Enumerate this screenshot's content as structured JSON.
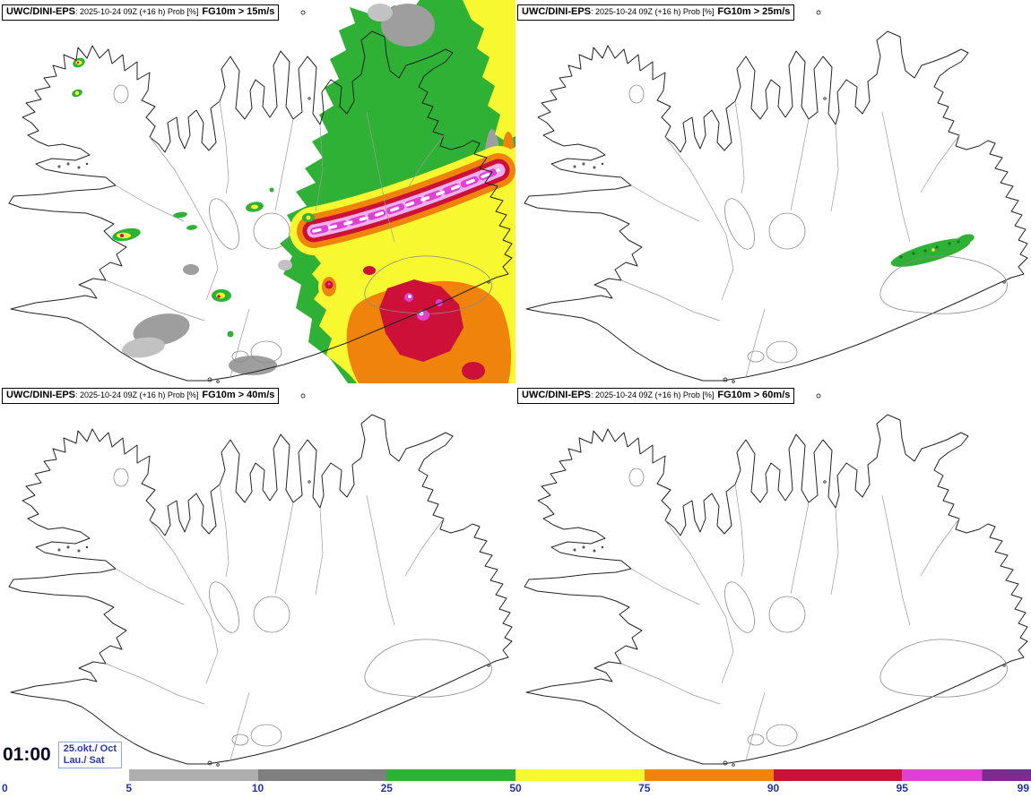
{
  "app": {
    "type": "ensemble probability forecast maps",
    "region": "Iceland"
  },
  "panels": [
    {
      "model": "UWC/DINI-EPS",
      "info": ": 2025-10-24 09Z (+16 h) Prob [%]",
      "threshold": "FG10m > 15m/s"
    },
    {
      "model": "UWC/DINI-EPS",
      "info": ": 2025-10-24 09Z (+16 h) Prob [%]",
      "threshold": "FG10m > 25m/s"
    },
    {
      "model": "UWC/DINI-EPS",
      "info": ": 2025-10-24 09Z (+16 h) Prob [%]",
      "threshold": "FG10m > 40m/s"
    },
    {
      "model": "UWC/DINI-EPS",
      "info": ": 2025-10-24 09Z (+16 h) Prob [%]",
      "threshold": "FG10m > 60m/s"
    }
  ],
  "footer": {
    "time": "01:00",
    "date_line1": "25.okt./ Oct",
    "date_line2": "Lau./ Sat"
  },
  "colorbar": {
    "ticks": [
      "0",
      "5",
      "10",
      "25",
      "50",
      "75",
      "90",
      "95",
      "99"
    ],
    "segments": [
      {
        "label": "0-5",
        "color": "#ffffff"
      },
      {
        "label": "5-10",
        "color": "#aeaeae"
      },
      {
        "label": "10-25",
        "color": "#7f7f7f"
      },
      {
        "label": "25-50",
        "color": "#2eb135"
      },
      {
        "label": "50-75",
        "color": "#f8f830"
      },
      {
        "label": "75-90",
        "color": "#f0830c"
      },
      {
        "label": "90-95",
        "color": "#cc1038"
      },
      {
        "label": "95-99",
        "color": "#df3fd3",
        "color2": "#7c2b8f"
      }
    ],
    "text_color": "#2233aa"
  },
  "chart_data": {
    "type": "map",
    "title": "UWC/DINI-EPS probability of 10 m wind gusts exceeding thresholds",
    "run": "2025-10-24 09Z",
    "lead_time": "+16 h",
    "valid_time": "01:00 25.okt./ Oct Lau./ Sat",
    "unit": "Prob [%]",
    "panel_thresholds": [
      "FG10m > 15m/s",
      "FG10m > 25m/s",
      "FG10m > 40m/s",
      "FG10m > 60m/s"
    ],
    "probability_scale_percent": [
      0,
      5,
      10,
      25,
      50,
      75,
      90,
      95,
      99
    ],
    "legend_position": "bottom"
  }
}
